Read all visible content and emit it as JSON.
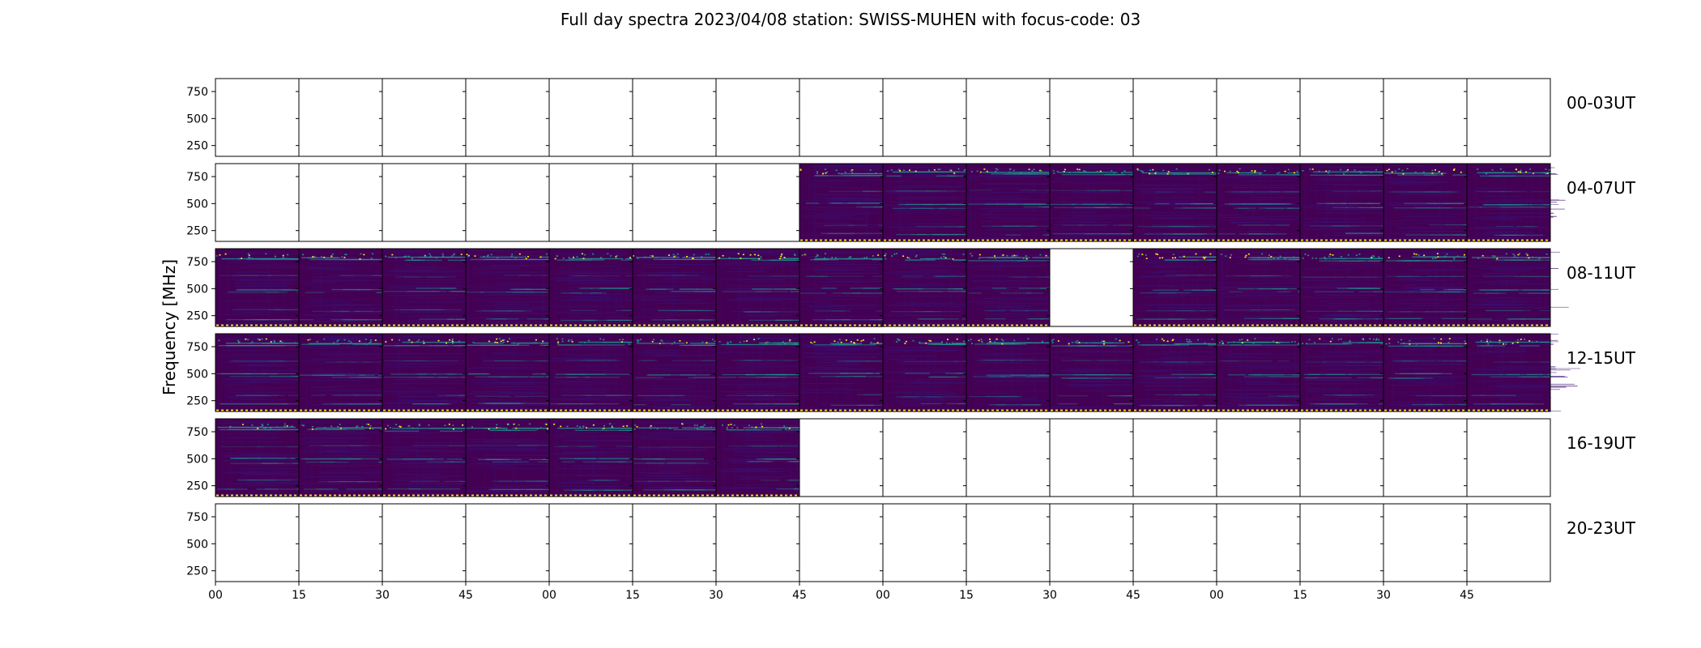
{
  "chart_data": {
    "type": "heatmap",
    "title": "Full day spectra 2023/04/08 station: SWISS-MUHEN with focus-code: 03",
    "ylabel": "Frequency [MHz]",
    "xlabel": "",
    "ylim": [
      150,
      870
    ],
    "yticks": [
      "750",
      "500",
      "250"
    ],
    "ytick_values": [
      750,
      500,
      250
    ],
    "xticks": [
      "00",
      "15",
      "30",
      "45",
      "00",
      "15",
      "30",
      "45",
      "00",
      "15",
      "30",
      "45",
      "00",
      "15",
      "30",
      "45"
    ],
    "colormap": "viridis",
    "colors": {
      "background": "#440154",
      "low": "#3b0f70",
      "mid": "#21918c",
      "high": "#fde725"
    },
    "row_labels": [
      "00-03UT",
      "04-07UT",
      "08-11UT",
      "12-15UT",
      "16-19UT",
      "20-23UT"
    ],
    "panels_per_row": 16,
    "panel_minutes": 15,
    "presence": [
      [
        0,
        0,
        0,
        0,
        0,
        0,
        0,
        0,
        0,
        0,
        0,
        0,
        0,
        0,
        0,
        0
      ],
      [
        0,
        0,
        0,
        0,
        0,
        0,
        0,
        1,
        1,
        1,
        1,
        1,
        1,
        1,
        1,
        1
      ],
      [
        1,
        1,
        1,
        1,
        1,
        1,
        1,
        1,
        1,
        1,
        0,
        1,
        1,
        1,
        1,
        1
      ],
      [
        1,
        1,
        1,
        1,
        1,
        1,
        1,
        1,
        1,
        1,
        1,
        1,
        1,
        1,
        1,
        1
      ],
      [
        1,
        1,
        1,
        1,
        1,
        1,
        1,
        0,
        0,
        0,
        0,
        0,
        0,
        0,
        0,
        0
      ],
      [
        0,
        0,
        0,
        0,
        0,
        0,
        0,
        0,
        0,
        0,
        0,
        0,
        0,
        0,
        0,
        0
      ]
    ]
  }
}
